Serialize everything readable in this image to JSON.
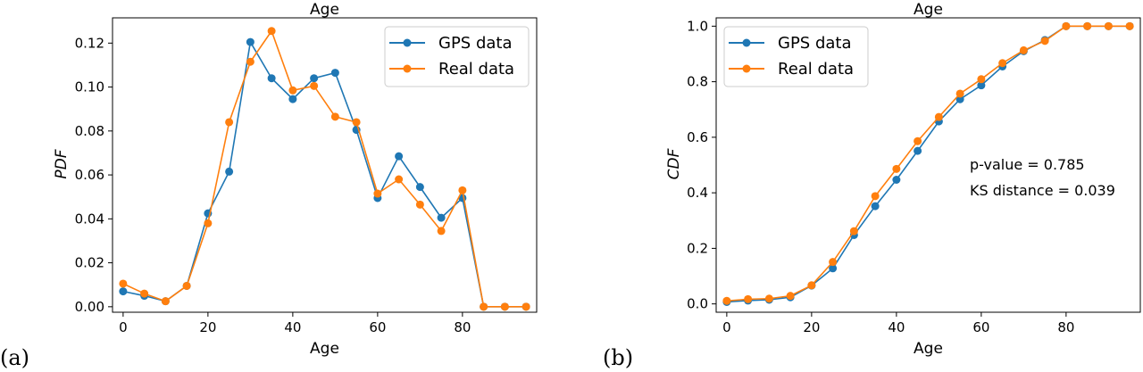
{
  "chart_data": [
    {
      "type": "line",
      "panel_label": "(a)",
      "title": "Age",
      "xlabel": "Age",
      "ylabel": "PDF",
      "xlim": [
        -2.5,
        97.5
      ],
      "ylim": [
        -0.0025,
        0.1315
      ],
      "xticks": [
        0,
        20,
        40,
        60,
        80
      ],
      "yticks": [
        0.0,
        0.02,
        0.04,
        0.06,
        0.08,
        0.1,
        0.12
      ],
      "ytick_labels": [
        "0.00",
        "0.02",
        "0.04",
        "0.06",
        "0.08",
        "0.10",
        "0.12"
      ],
      "legend_position": "top-right",
      "x": [
        0,
        5,
        10,
        15,
        20,
        25,
        30,
        35,
        40,
        45,
        50,
        55,
        60,
        65,
        70,
        75,
        80,
        85,
        90,
        95
      ],
      "series": [
        {
          "name": "GPS data",
          "color": "#1f77b4",
          "values": [
            0.007,
            0.005,
            0.0025,
            0.0095,
            0.0425,
            0.0615,
            0.1205,
            0.104,
            0.0945,
            0.104,
            0.1065,
            0.0805,
            0.0495,
            0.0685,
            0.0545,
            0.0405,
            0.0495,
            0.0,
            0.0,
            0.0
          ]
        },
        {
          "name": "Real data",
          "color": "#ff7f0e",
          "values": [
            0.0105,
            0.006,
            0.0025,
            0.0095,
            0.038,
            0.084,
            0.1115,
            0.1255,
            0.0985,
            0.1005,
            0.0865,
            0.084,
            0.0515,
            0.058,
            0.0465,
            0.0345,
            0.053,
            0.0,
            0.0,
            0.0
          ]
        }
      ]
    },
    {
      "type": "line",
      "panel_label": "(b)",
      "title": "Age",
      "xlabel": "Age",
      "ylabel": "CDF",
      "xlim": [
        -2.5,
        97.5
      ],
      "ylim": [
        -0.03,
        1.03
      ],
      "xticks": [
        0,
        20,
        40,
        60,
        80
      ],
      "yticks": [
        0.0,
        0.2,
        0.4,
        0.6,
        0.8,
        1.0
      ],
      "ytick_labels": [
        "0.0",
        "0.2",
        "0.4",
        "0.6",
        "0.8",
        "1.0"
      ],
      "legend_position": "top-left",
      "annotations": [
        "p-value = 0.785",
        "KS distance = 0.039"
      ],
      "x": [
        0,
        5,
        10,
        15,
        20,
        25,
        30,
        35,
        40,
        45,
        50,
        55,
        60,
        65,
        70,
        75,
        80,
        85,
        90,
        95
      ],
      "series": [
        {
          "name": "GPS data",
          "color": "#1f77b4",
          "values": [
            0.007,
            0.012,
            0.015,
            0.024,
            0.066,
            0.128,
            0.248,
            0.352,
            0.447,
            0.551,
            0.657,
            0.737,
            0.787,
            0.855,
            0.91,
            0.95,
            1.0,
            1.0,
            1.0,
            1.0
          ]
        },
        {
          "name": "Real data",
          "color": "#ff7f0e",
          "values": [
            0.011,
            0.017,
            0.019,
            0.029,
            0.067,
            0.151,
            0.262,
            0.388,
            0.486,
            0.586,
            0.673,
            0.757,
            0.809,
            0.867,
            0.913,
            0.947,
            1.0,
            1.0,
            1.0,
            1.0
          ]
        }
      ]
    }
  ]
}
